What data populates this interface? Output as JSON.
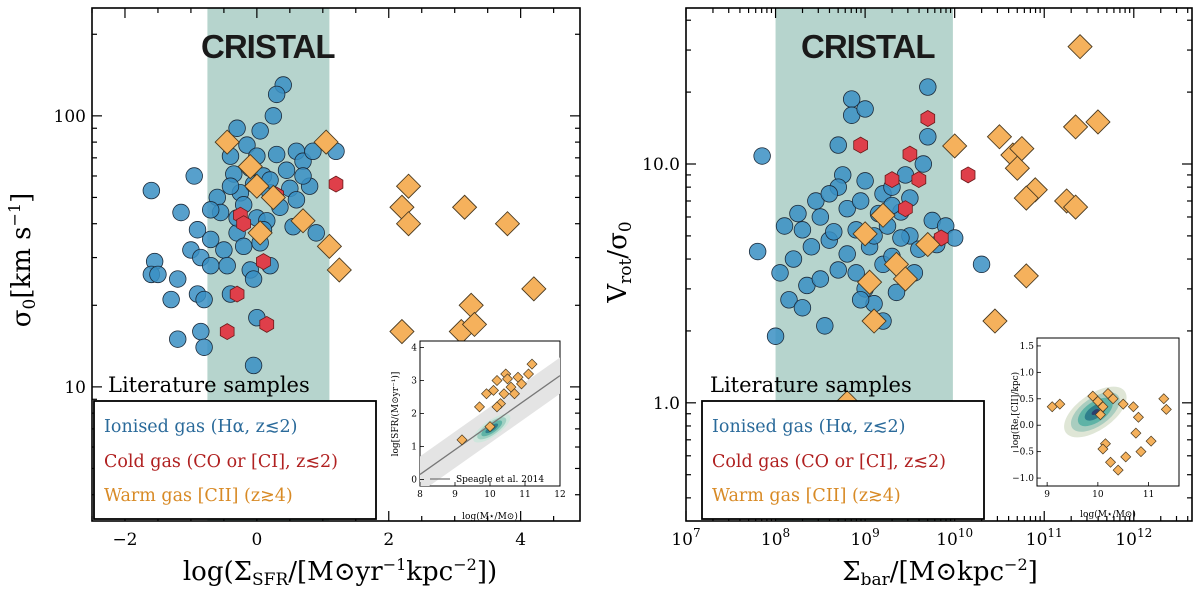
{
  "brand": "CRISTAL",
  "legend": {
    "title": "Literature samples",
    "entries": [
      {
        "label": "Ionised gas (Hα, z≲2)",
        "color": "#2a6a9a"
      },
      {
        "label": "Cold gas (CO or [CI], z≲2)",
        "color": "#b02020"
      },
      {
        "label": "Warm gas [CII] (z≳4)",
        "color": "#d88a25"
      }
    ]
  },
  "colors": {
    "ionised": "#3a8fc3",
    "cold": "#df3f4a",
    "warm": "#f5b15c",
    "band": "#a9cdc4"
  },
  "chart_data": [
    {
      "type": "scatter",
      "id": "left",
      "xlabel": "log(ΣSFR/[M⊙yr⁻¹kpc⁻²])",
      "ylabel": "σ0[km s⁻¹]",
      "xlim": [
        -2.5,
        4.9
      ],
      "ylim": [
        3.2,
        250
      ],
      "yscale": "log",
      "band": [
        -0.75,
        1.1
      ],
      "xticks": [
        {
          "v": -2,
          "l": "−2"
        },
        {
          "v": 0,
          "l": "0"
        },
        {
          "v": 2,
          "l": "2"
        },
        {
          "v": 4,
          "l": "4"
        }
      ],
      "yticks": [
        {
          "v": 10,
          "l": "10"
        },
        {
          "v": 100,
          "l": "100"
        }
      ],
      "ionised": [
        [
          -1.6,
          53
        ],
        [
          -1.55,
          29
        ],
        [
          -1.6,
          26
        ],
        [
          -1.5,
          26
        ],
        [
          -1.3,
          21
        ],
        [
          -1.2,
          25
        ],
        [
          -1.15,
          44
        ],
        [
          -1.2,
          15
        ],
        [
          -1.0,
          32
        ],
        [
          -0.95,
          60
        ],
        [
          -0.9,
          38
        ],
        [
          -0.9,
          22
        ],
        [
          -0.85,
          30
        ],
        [
          -0.85,
          16
        ],
        [
          -0.8,
          21
        ],
        [
          -0.8,
          14
        ],
        [
          -0.7,
          35
        ],
        [
          -0.7,
          28
        ],
        [
          -0.6,
          50
        ],
        [
          -0.55,
          44
        ],
        [
          -0.5,
          32
        ],
        [
          -0.45,
          28
        ],
        [
          -0.4,
          22
        ],
        [
          -0.4,
          71
        ],
        [
          -0.35,
          61
        ],
        [
          -0.3,
          90
        ],
        [
          -0.3,
          37
        ],
        [
          -0.25,
          52
        ],
        [
          -0.2,
          47
        ],
        [
          -0.2,
          33
        ],
        [
          -0.15,
          78
        ],
        [
          -0.1,
          64
        ],
        [
          -0.1,
          27
        ],
        [
          -0.05,
          56
        ],
        [
          0.0,
          42
        ],
        [
          0.0,
          71
        ],
        [
          0.05,
          88
        ],
        [
          0.05,
          34
        ],
        [
          0.1,
          60
        ],
        [
          0.15,
          41
        ],
        [
          0.2,
          52
        ],
        [
          0.2,
          28
        ],
        [
          0.25,
          100
        ],
        [
          0.3,
          72
        ],
        [
          0.35,
          46
        ],
        [
          0.4,
          130
        ],
        [
          0.45,
          63
        ],
        [
          0.5,
          54
        ],
        [
          0.55,
          39
        ],
        [
          0.6,
          74
        ],
        [
          0.7,
          68
        ],
        [
          0.8,
          55
        ],
        [
          0.85,
          74
        ],
        [
          0.9,
          37
        ],
        [
          1.2,
          74
        ],
        [
          -0.05,
          25
        ],
        [
          0.1,
          38
        ],
        [
          -0.4,
          55
        ],
        [
          -0.3,
          42
        ],
        [
          0.2,
          58
        ],
        [
          0.3,
          120
        ],
        [
          -0.05,
          12
        ],
        [
          0.0,
          18
        ],
        [
          0.6,
          49
        ],
        [
          0.7,
          60
        ],
        [
          -0.7,
          45
        ]
      ],
      "cold": [
        [
          -0.45,
          16
        ],
        [
          -0.3,
          22
        ],
        [
          -0.25,
          43
        ],
        [
          -0.2,
          40
        ],
        [
          0.1,
          29
        ],
        [
          0.15,
          17
        ],
        [
          0.3,
          51
        ],
        [
          1.2,
          56
        ]
      ],
      "warm": [
        [
          -0.45,
          80
        ],
        [
          -0.1,
          65
        ],
        [
          0.0,
          55
        ],
        [
          0.05,
          37
        ],
        [
          0.25,
          50
        ],
        [
          0.7,
          41
        ],
        [
          1.05,
          80
        ],
        [
          1.1,
          33
        ],
        [
          1.25,
          27
        ],
        [
          2.2,
          16
        ],
        [
          2.2,
          46
        ],
        [
          2.3,
          40
        ],
        [
          2.3,
          55
        ],
        [
          3.1,
          16
        ],
        [
          3.15,
          46
        ],
        [
          3.25,
          20
        ],
        [
          3.3,
          17
        ],
        [
          3.8,
          40
        ],
        [
          4.2,
          23
        ]
      ],
      "inset": {
        "xlabel": "log(M⋆/M⊙)",
        "ylabel": "log[SFR/(M⊙yr⁻¹)]",
        "xlim": [
          8,
          12
        ],
        "ylim": [
          -0.2,
          4.2
        ],
        "xticks": [
          {
            "v": 8,
            "l": "8"
          },
          {
            "v": 9,
            "l": "9"
          },
          {
            "v": 10,
            "l": "10"
          },
          {
            "v": 11,
            "l": "11"
          },
          {
            "v": 12,
            "l": "12"
          }
        ],
        "yticks": [
          {
            "v": 0,
            "l": "0"
          },
          {
            "v": 1,
            "l": "1"
          },
          {
            "v": 2,
            "l": "2"
          },
          {
            "v": 3,
            "l": "3"
          },
          {
            "v": 4,
            "l": "4"
          }
        ],
        "line_label": "Speagle et al. 2014",
        "line": [
          [
            8.0,
            0.15
          ],
          [
            12.0,
            3.15
          ]
        ],
        "diamonds": [
          [
            9.2,
            1.2
          ],
          [
            9.7,
            2.2
          ],
          [
            9.9,
            2.6
          ],
          [
            10.0,
            1.6
          ],
          [
            10.1,
            2.7
          ],
          [
            10.2,
            3.0
          ],
          [
            10.3,
            2.3
          ],
          [
            10.4,
            2.6
          ],
          [
            10.45,
            3.2
          ],
          [
            10.5,
            3.05
          ],
          [
            10.6,
            2.8
          ],
          [
            10.7,
            2.6
          ],
          [
            10.8,
            3.1
          ],
          [
            10.9,
            2.9
          ],
          [
            11.1,
            3.2
          ],
          [
            11.2,
            3.5
          ],
          [
            10.2,
            2.2
          ]
        ]
      }
    },
    {
      "type": "scatter",
      "id": "right",
      "xlabel": "Σbar/[M⊙kpc⁻²]",
      "ylabel": "Vrot/σ0",
      "xlim": [
        7,
        12.65
      ],
      "ylim": [
        0.32,
        45
      ],
      "xscale": "log",
      "yscale": "log",
      "band": [
        8.0,
        9.98
      ],
      "xticks": [
        {
          "v": 7,
          "l": "10"
        },
        {
          "v": 8,
          "l": "10"
        },
        {
          "v": 9,
          "l": "10"
        },
        {
          "v": 10,
          "l": "10"
        },
        {
          "v": 11,
          "l": "10"
        },
        {
          "v": 12,
          "l": "10"
        }
      ],
      "xtick_exps": [
        "7",
        "8",
        "9",
        "10",
        "11",
        "12"
      ],
      "yticks": [
        {
          "v": 1,
          "l": "1.0"
        },
        {
          "v": 10,
          "l": "10.0"
        }
      ],
      "ionised": [
        [
          7.8,
          4.3
        ],
        [
          7.85,
          10.8
        ],
        [
          8.0,
          1.9
        ],
        [
          8.05,
          3.5
        ],
        [
          8.1,
          5.5
        ],
        [
          8.15,
          2.7
        ],
        [
          8.2,
          4.0
        ],
        [
          8.25,
          6.2
        ],
        [
          8.3,
          2.5
        ],
        [
          8.3,
          5.3
        ],
        [
          8.35,
          3.1
        ],
        [
          8.4,
          4.5
        ],
        [
          8.45,
          7.0
        ],
        [
          8.5,
          6.0
        ],
        [
          8.5,
          3.3
        ],
        [
          8.55,
          2.1
        ],
        [
          8.6,
          4.8
        ],
        [
          8.65,
          5.2
        ],
        [
          8.7,
          3.6
        ],
        [
          8.7,
          12.0
        ],
        [
          8.75,
          9.0
        ],
        [
          8.8,
          6.5
        ],
        [
          8.8,
          4.2
        ],
        [
          8.85,
          18.7
        ],
        [
          8.85,
          16.0
        ],
        [
          8.9,
          5.3
        ],
        [
          8.95,
          7.0
        ],
        [
          9.0,
          3.0
        ],
        [
          9.0,
          8.5
        ],
        [
          9.05,
          4.5
        ],
        [
          9.1,
          5.0
        ],
        [
          9.1,
          2.6
        ],
        [
          9.15,
          6.2
        ],
        [
          9.2,
          7.5
        ],
        [
          9.2,
          3.8
        ],
        [
          9.25,
          5.5
        ],
        [
          9.3,
          4.1
        ],
        [
          9.3,
          8.0
        ],
        [
          9.35,
          2.9
        ],
        [
          9.4,
          6.3
        ],
        [
          9.45,
          9.0
        ],
        [
          9.5,
          5.0
        ],
        [
          9.5,
          7.2
        ],
        [
          9.55,
          3.5
        ],
        [
          9.6,
          4.4
        ],
        [
          9.65,
          10.0
        ],
        [
          9.7,
          13.0
        ],
        [
          9.7,
          21.0
        ],
        [
          9.75,
          5.8
        ],
        [
          9.8,
          4.6
        ],
        [
          9.9,
          5.5
        ],
        [
          10.0,
          4.9
        ],
        [
          10.3,
          3.8
        ],
        [
          9.0,
          17.0
        ],
        [
          8.7,
          8.0
        ],
        [
          9.3,
          6.7
        ],
        [
          8.95,
          2.7
        ],
        [
          9.2,
          2.2
        ],
        [
          8.6,
          7.5
        ],
        [
          9.4,
          4.9
        ],
        [
          8.9,
          3.5
        ]
      ],
      "cold": [
        [
          8.95,
          12.0
        ],
        [
          9.3,
          8.6
        ],
        [
          9.5,
          11.0
        ],
        [
          9.6,
          8.6
        ],
        [
          9.7,
          15.5
        ],
        [
          9.85,
          4.9
        ],
        [
          10.15,
          9.0
        ],
        [
          9.45,
          6.5
        ]
      ],
      "warm": [
        [
          8.8,
          1.0
        ],
        [
          9.0,
          5.1
        ],
        [
          9.05,
          3.2
        ],
        [
          9.1,
          2.2
        ],
        [
          9.2,
          6.1
        ],
        [
          9.35,
          3.8
        ],
        [
          9.45,
          3.3
        ],
        [
          9.7,
          4.6
        ],
        [
          10.0,
          11.9
        ],
        [
          10.45,
          2.2
        ],
        [
          10.5,
          13.0
        ],
        [
          10.65,
          10.9
        ],
        [
          10.7,
          9.6
        ],
        [
          10.75,
          11.6
        ],
        [
          10.8,
          3.4
        ],
        [
          10.9,
          7.8
        ],
        [
          11.25,
          7.0
        ],
        [
          11.35,
          6.6
        ],
        [
          11.35,
          14.3
        ],
        [
          11.6,
          15.0
        ],
        [
          11.4,
          31.0
        ],
        [
          10.8,
          7.2
        ]
      ],
      "inset": {
        "xlabel": "log(M⋆/M⊙)",
        "ylabel": "log(Re,[CII]/kpc)",
        "xlim": [
          8.8,
          11.6
        ],
        "ylim": [
          -1.15,
          1.65
        ],
        "xticks": [
          {
            "v": 9,
            "l": "9"
          },
          {
            "v": 10,
            "l": "10"
          },
          {
            "v": 11,
            "l": "11"
          }
        ],
        "yticks": [
          {
            "v": -1.0,
            "l": "−1.0"
          },
          {
            "v": -0.5,
            "l": "−0.5"
          },
          {
            "v": 0.0,
            "l": "0.0"
          },
          {
            "v": 0.5,
            "l": "0.5"
          },
          {
            "v": 1.0,
            "l": "1.0"
          },
          {
            "v": 1.5,
            "l": "1.5"
          }
        ],
        "diamonds": [
          [
            9.1,
            0.35
          ],
          [
            9.25,
            0.4
          ],
          [
            9.9,
            0.55
          ],
          [
            10.0,
            0.45
          ],
          [
            10.05,
            0.2
          ],
          [
            10.1,
            0.35
          ],
          [
            10.15,
            -0.35
          ],
          [
            10.2,
            0.6
          ],
          [
            10.25,
            -0.7
          ],
          [
            10.3,
            0.5
          ],
          [
            10.5,
            0.4
          ],
          [
            10.55,
            -0.6
          ],
          [
            10.7,
            0.35
          ],
          [
            10.75,
            -0.15
          ],
          [
            10.8,
            0.15
          ],
          [
            10.85,
            -0.5
          ],
          [
            11.05,
            -0.3
          ],
          [
            11.3,
            0.5
          ],
          [
            11.35,
            0.3
          ],
          [
            10.4,
            -0.85
          ],
          [
            10.1,
            -0.45
          ]
        ]
      }
    }
  ]
}
